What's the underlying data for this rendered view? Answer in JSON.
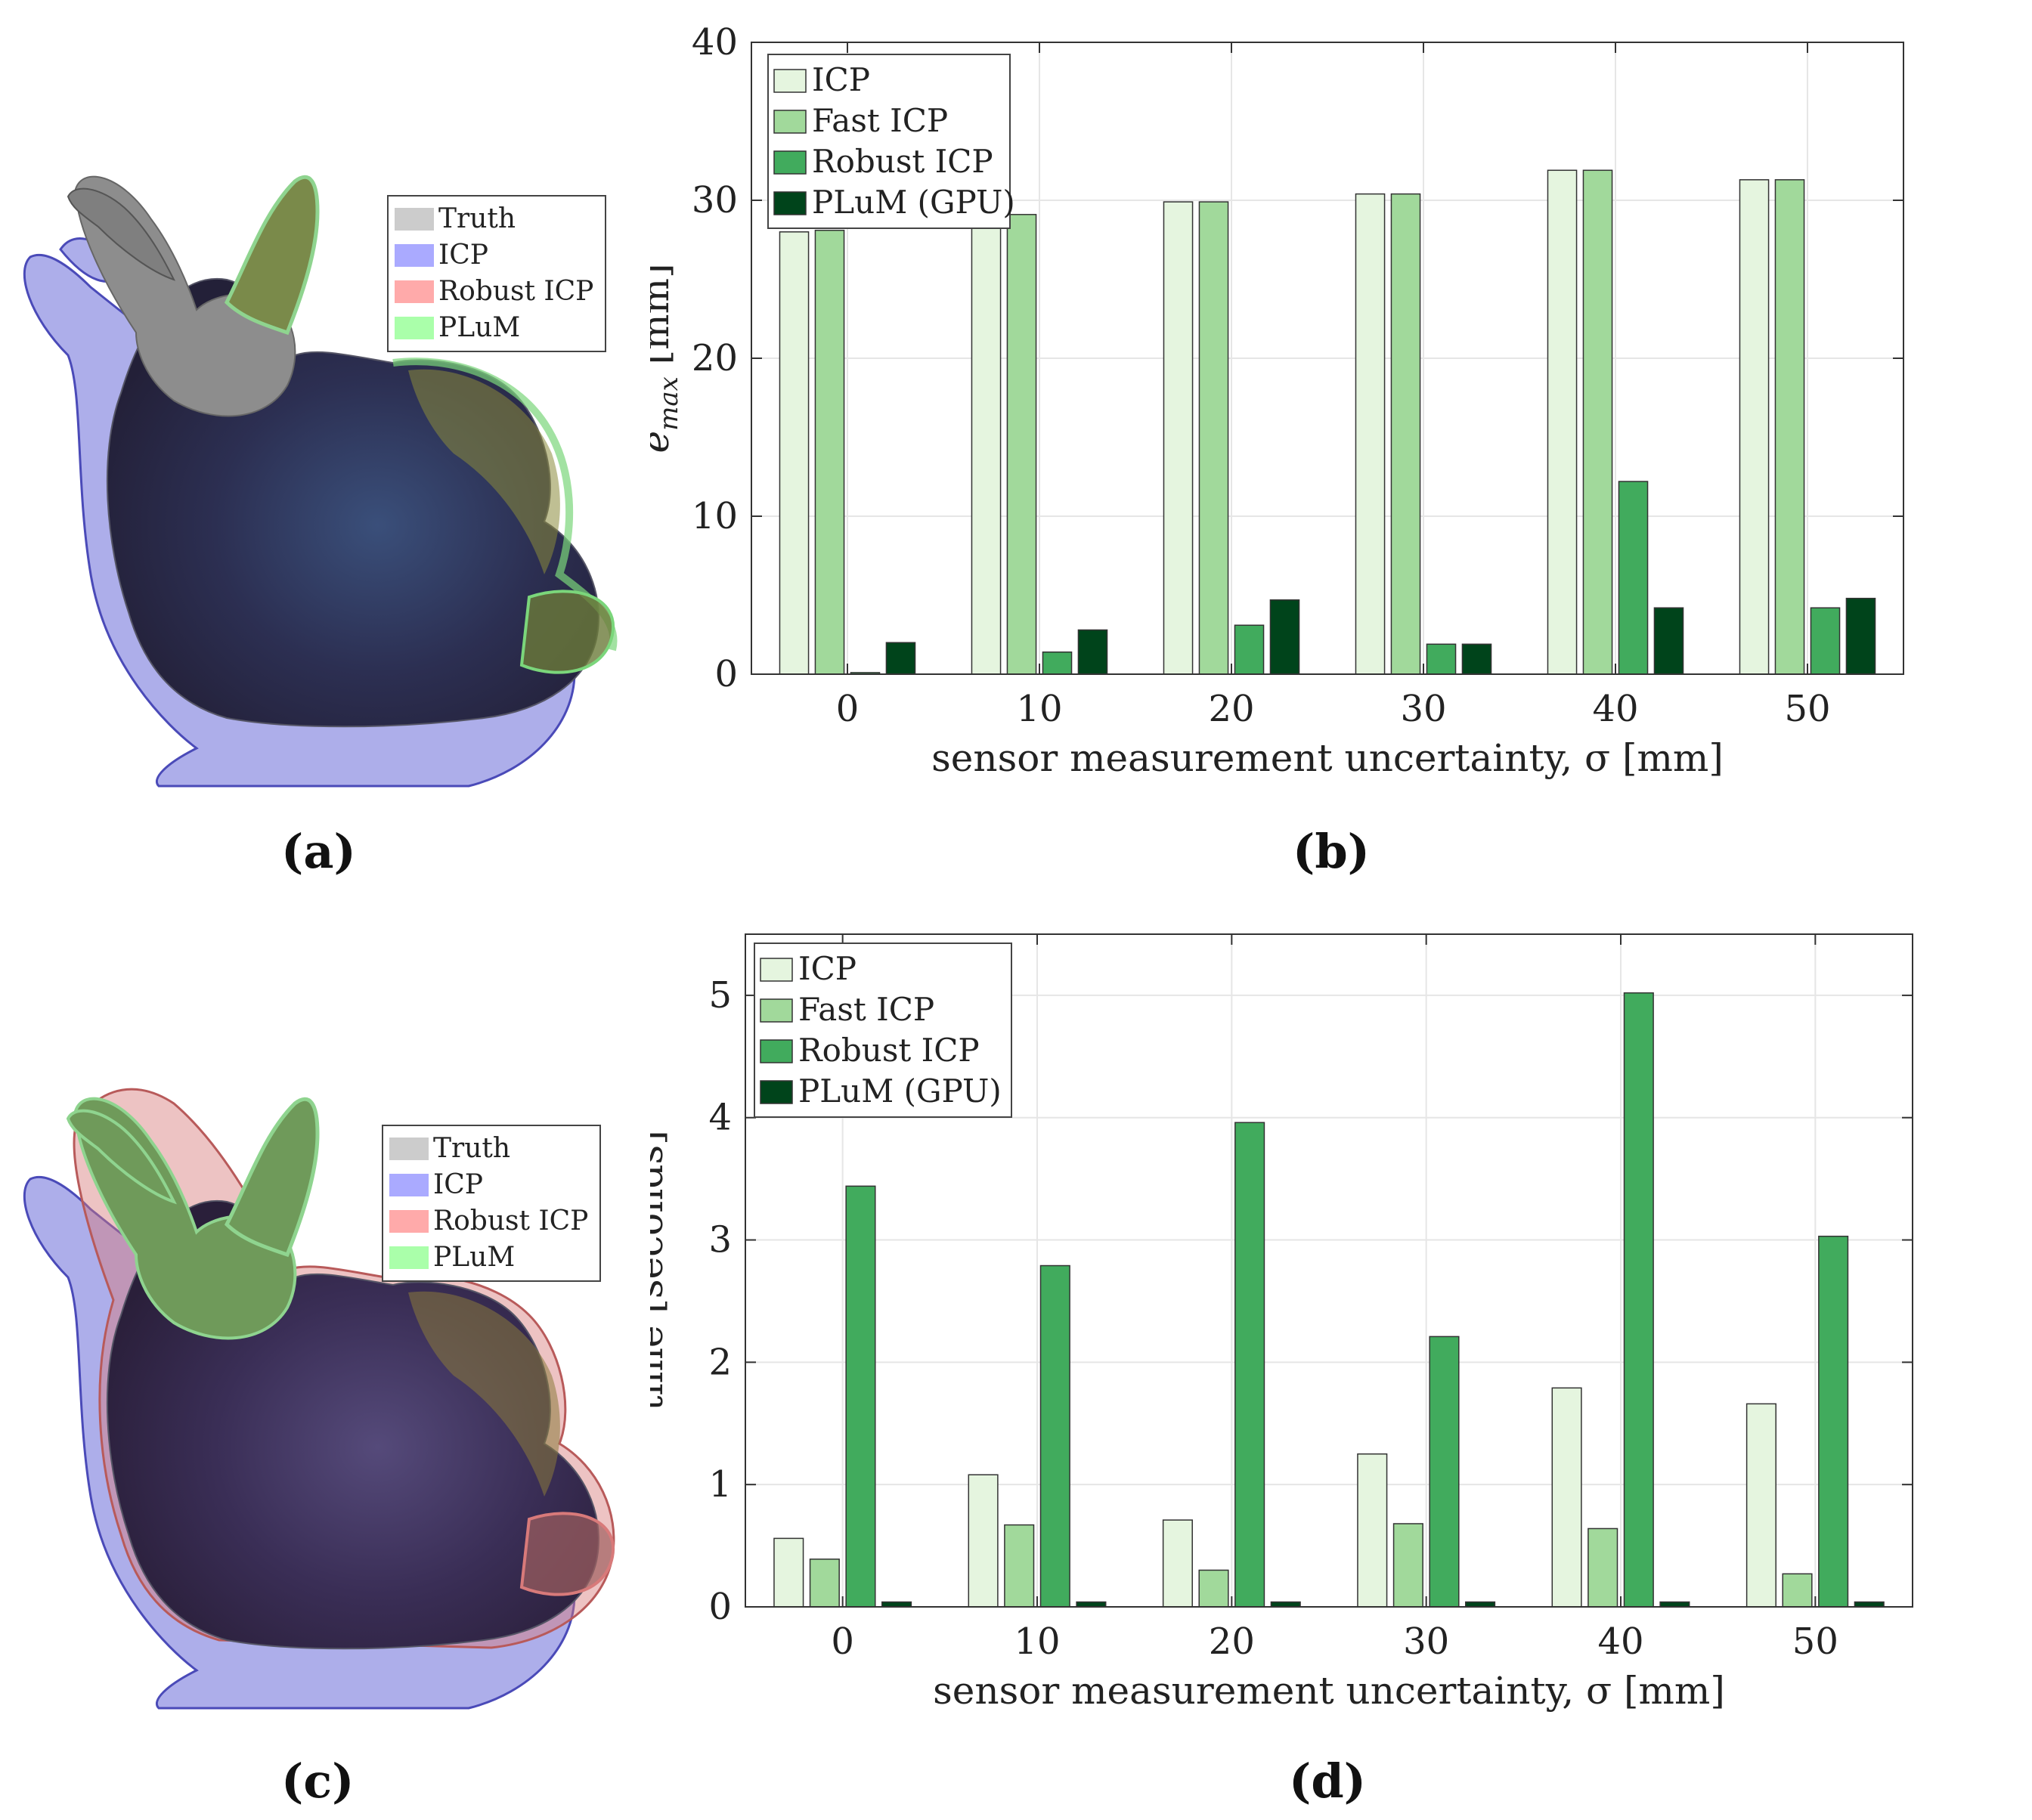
{
  "colors": {
    "icp": "#e5f5df",
    "fast_icp": "#a1d99b",
    "robust_icp": "#41ab5d",
    "plum": "#00441b",
    "truth_swatch": "#cccccc",
    "icp_swatch": "#aaaaff",
    "robust_swatch": "#ffaaaa",
    "plum_swatch": "#aaffaa"
  },
  "panels": {
    "a": {
      "caption": "(a)",
      "legend": [
        "Truth",
        "ICP",
        "Robust ICP",
        "PLuM"
      ]
    },
    "b": {
      "caption": "(b)"
    },
    "c": {
      "caption": "(c)",
      "legend": [
        "Truth",
        "ICP",
        "Robust ICP",
        "PLuM"
      ]
    },
    "d": {
      "caption": "(d)"
    }
  },
  "chart_data": [
    {
      "type": "bar",
      "panel": "b",
      "categories": [
        "0",
        "10",
        "20",
        "30",
        "40",
        "50"
      ],
      "xlabel": "sensor measurement uncertainty, σ [mm]",
      "ylabel_main": "e",
      "ylabel_sub": "max",
      "ylabel_unit": " [mm]",
      "ylim": [
        0,
        40
      ],
      "yticks": [
        0,
        10,
        20,
        30,
        40
      ],
      "grid": true,
      "legend_position": "top-left",
      "series": [
        {
          "name": "ICP",
          "color_key": "icp",
          "values": [
            28.0,
            28.4,
            29.9,
            30.4,
            31.9,
            31.3
          ]
        },
        {
          "name": "Fast ICP",
          "color_key": "fast_icp",
          "values": [
            28.1,
            29.1,
            29.9,
            30.4,
            31.9,
            31.3
          ]
        },
        {
          "name": "Robust ICP",
          "color_key": "robust_icp",
          "values": [
            0.1,
            1.4,
            3.1,
            1.9,
            12.2,
            4.2
          ]
        },
        {
          "name": "PLuM (GPU)",
          "color_key": "plum",
          "values": [
            2.0,
            2.8,
            4.7,
            1.9,
            4.2,
            4.8
          ]
        }
      ]
    },
    {
      "type": "bar",
      "panel": "d",
      "categories": [
        "0",
        "10",
        "20",
        "30",
        "40",
        "50"
      ],
      "xlabel": "sensor measurement uncertainty, σ [mm]",
      "ylabel_main": "time [seconds]",
      "ylabel_sub": "",
      "ylabel_unit": "",
      "ylim": [
        0,
        5.5
      ],
      "yticks": [
        0,
        1,
        2,
        3,
        4,
        5
      ],
      "grid": true,
      "legend_position": "top-left",
      "series": [
        {
          "name": "ICP",
          "color_key": "icp",
          "values": [
            0.56,
            1.08,
            0.71,
            1.25,
            1.79,
            1.66
          ]
        },
        {
          "name": "Fast ICP",
          "color_key": "fast_icp",
          "values": [
            0.39,
            0.67,
            0.3,
            0.68,
            0.64,
            0.27
          ]
        },
        {
          "name": "Robust ICP",
          "color_key": "robust_icp",
          "values": [
            3.44,
            2.79,
            3.96,
            2.21,
            5.02,
            3.03
          ]
        },
        {
          "name": "PLuM (GPU)",
          "color_key": "plum",
          "values": [
            0.04,
            0.04,
            0.04,
            0.04,
            0.04,
            0.04
          ]
        }
      ]
    }
  ]
}
